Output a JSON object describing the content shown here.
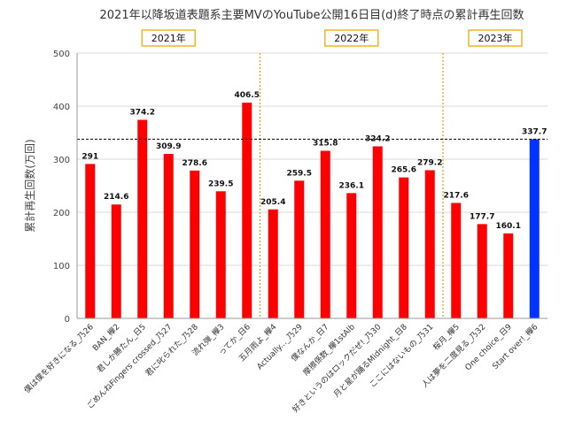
{
  "chart_data": {
    "type": "bar",
    "title": "2021年以降坂道表題系主要MVのYouTube公開16日目(d)終了時点の累計再生回数",
    "ylabel": "累計再生回数(万回)",
    "xlabel": "",
    "ylim": [
      0,
      500
    ],
    "yticks": [
      0,
      100,
      200,
      300,
      400,
      500
    ],
    "grid": true,
    "reference_line": 337.7,
    "year_groups": [
      {
        "label": "2021年",
        "start": 0,
        "end": 6
      },
      {
        "label": "2022年",
        "start": 7,
        "end": 13
      },
      {
        "label": "2023年",
        "start": 14,
        "end": 17
      }
    ],
    "categories": [
      "僕は僕を好きになる_乃26",
      "BAN_欅2",
      "君しか勝たん_日5",
      "ごめんねFingers crossed_乃27",
      "君に叱られた_乃28",
      "流れ弾_欅3",
      "ってか_日6",
      "五月雨よ_欅4",
      "Actually..._乃29",
      "僕なんか_日7",
      "摩擦係数_欅1stAlb",
      "好きというのはロックだぜ!_乃30",
      "月と星が踊るMidnight_日8",
      "ここにはないもの_乃31",
      "桜月_欅5",
      "人は夢を二度見る_乃32",
      "One choice_日9",
      "Start over!_欅6"
    ],
    "values": [
      291,
      214.6,
      374.2,
      309.9,
      278.6,
      239.5,
      406.5,
      205.4,
      259.5,
      315.8,
      236.1,
      324.2,
      265.6,
      279.2,
      217.6,
      177.7,
      160.1,
      337.7
    ],
    "value_labels": [
      "291",
      "214.6",
      "374.2",
      "309.9",
      "278.6",
      "239.5",
      "406.5",
      "205.4",
      "259.5",
      "315.8",
      "236.1",
      "324.2",
      "265.6",
      "279.2",
      "217.6",
      "177.7",
      "160.1",
      "337.7"
    ],
    "bar_colors": [
      "#ff0000",
      "#ff0000",
      "#ff0000",
      "#ff0000",
      "#ff0000",
      "#ff0000",
      "#ff0000",
      "#ff0000",
      "#ff0000",
      "#ff0000",
      "#ff0000",
      "#ff0000",
      "#ff0000",
      "#ff0000",
      "#ff0000",
      "#ff0000",
      "#ff0000",
      "#0033ff"
    ],
    "colors": {
      "bar": "#ff0000",
      "highlight_bar": "#0033ff",
      "year_box_border": "#f0b429",
      "divider": "#d4a017",
      "reference": "#000000",
      "grid": "#d9d9d9"
    }
  }
}
